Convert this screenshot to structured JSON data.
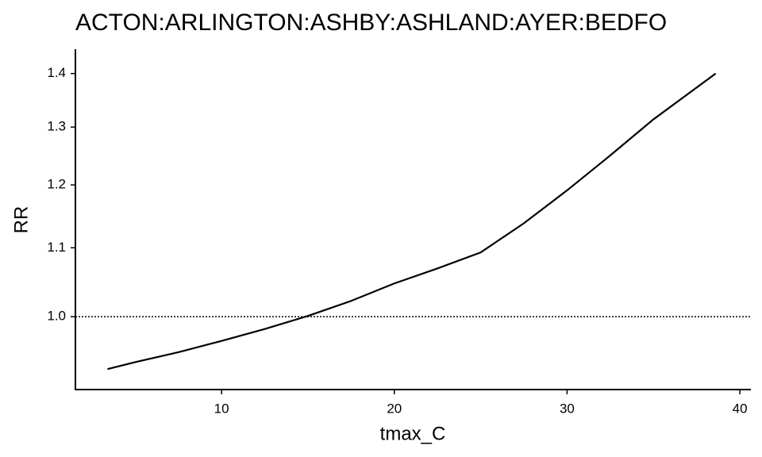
{
  "chart_data": {
    "type": "line",
    "title": "ACTON:ARLINGTON:ASHBY:ASHLAND:AYER:BEDFO",
    "x_label": "tmax_C",
    "y_label": "RR",
    "x": [
      3.4,
      5,
      7.5,
      10,
      12.5,
      15,
      17.5,
      20,
      22.5,
      25,
      27.5,
      30,
      32.5,
      35,
      38.6
    ],
    "series": [
      {
        "color": "#000000",
        "values": [
          0.93,
          0.939,
          0.952,
          0.967,
          0.983,
          1.001,
          1.022,
          1.047,
          1.069,
          1.093,
          1.138,
          1.191,
          1.25,
          1.314,
          1.4
        ]
      }
    ],
    "reference_line": 1.0,
    "log_y": true,
    "xlim": [
      1.54,
      40.64
    ],
    "xticks": [
      10,
      20,
      30,
      40
    ],
    "ylim": [
      0.904,
      1.448
    ],
    "yticks": [
      {
        "value": 1.0,
        "label": "1.0"
      },
      1.1,
      1.2,
      1.3,
      1.4
    ]
  }
}
